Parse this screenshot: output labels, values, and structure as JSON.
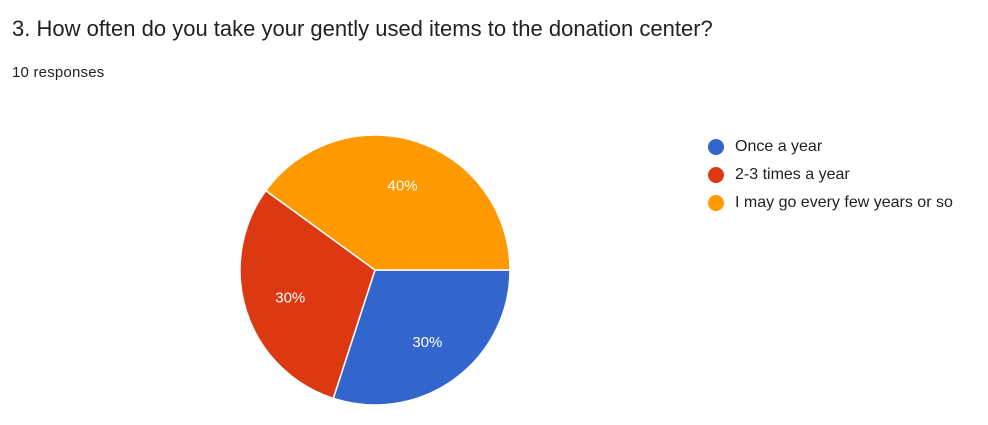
{
  "question": {
    "title": "3. How often do you take your gently used items to the donation center?",
    "responses": "10 responses"
  },
  "chart_data": {
    "type": "pie",
    "categories": [
      "Once a year",
      "2-3 times a year",
      "I may go every few years or so"
    ],
    "values": [
      30,
      30,
      40
    ],
    "value_labels": [
      "30%",
      "30%",
      "40%"
    ],
    "colors": [
      "#3366cc",
      "#dc3912",
      "#ff9900"
    ],
    "legend_position": "right"
  }
}
